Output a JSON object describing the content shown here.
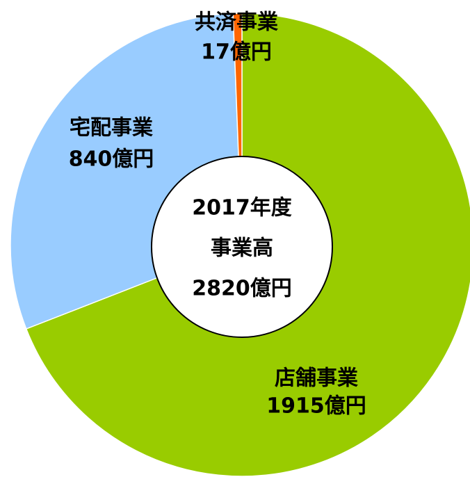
{
  "chart_data": {
    "type": "pie",
    "categories": [
      "店舗事業",
      "宅配事業",
      "共済事業"
    ],
    "values": [
      1915,
      840,
      17
    ],
    "value_labels": [
      "1915億円",
      "840億円",
      "17億円"
    ],
    "colors": [
      "#99cc00",
      "#99ccff",
      "#ff6600"
    ],
    "annotations": [
      "2017年度",
      "事業高",
      "2820億円"
    ]
  }
}
